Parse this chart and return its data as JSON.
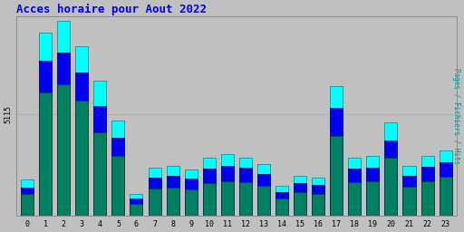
{
  "title": "Acces horaire pour Aout 2022",
  "ylabel": "Pages / Fichiers / Hits",
  "hours": [
    0,
    1,
    2,
    3,
    4,
    5,
    6,
    7,
    8,
    9,
    10,
    11,
    12,
    13,
    14,
    15,
    16,
    17,
    18,
    19,
    20,
    21,
    22,
    23
  ],
  "hits": [
    1800,
    9200,
    9800,
    8500,
    6800,
    4800,
    1100,
    2400,
    2500,
    2300,
    2900,
    3100,
    2900,
    2600,
    1500,
    2000,
    1900,
    6500,
    2900,
    3000,
    4700,
    2500,
    3000,
    3300
  ],
  "fichiers": [
    1400,
    7800,
    8200,
    7200,
    5500,
    3900,
    850,
    1900,
    2000,
    1850,
    2350,
    2500,
    2400,
    2100,
    1200,
    1650,
    1550,
    5400,
    2350,
    2400,
    3800,
    2000,
    2450,
    2700
  ],
  "pages": [
    1100,
    6200,
    6600,
    5800,
    4200,
    3000,
    600,
    1350,
    1400,
    1300,
    1650,
    1750,
    1700,
    1500,
    850,
    1200,
    1100,
    4000,
    1700,
    1750,
    2900,
    1450,
    1750,
    1950
  ],
  "color_hits": "#00FFFF",
  "color_fichiers": "#0000EE",
  "color_pages": "#008060",
  "background_color": "#C0C0C0",
  "plot_bg_color": "#C0C0C0",
  "title_color": "#0000EE",
  "ylabel_color": "#009090",
  "grid_color": "#AAAAAA",
  "ytick_label": "5115",
  "ytick_value": 5115,
  "ylim_max": 10000,
  "bar_width": 0.7
}
